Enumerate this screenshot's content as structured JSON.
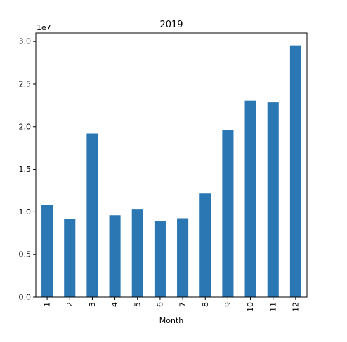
{
  "chart_data": {
    "type": "bar",
    "title": "2019",
    "xlabel": "Month",
    "ylabel": "",
    "y_offset_label": "1e7",
    "categories": [
      "1",
      "2",
      "3",
      "4",
      "5",
      "6",
      "7",
      "8",
      "9",
      "10",
      "11",
      "12"
    ],
    "values": [
      10850000,
      9200000,
      19200000,
      9600000,
      10350000,
      8900000,
      9250000,
      12150000,
      19600000,
      23050000,
      22850000,
      29550000
    ],
    "ylim": [
      0,
      31000000
    ],
    "yticks": [
      0,
      5000000,
      10000000,
      15000000,
      20000000,
      25000000,
      30000000
    ],
    "ytick_labels": [
      "0.0",
      "0.5",
      "1.0",
      "1.5",
      "2.0",
      "2.5",
      "3.0"
    ],
    "bar_color": "#2a77b4",
    "grid": false,
    "legend": "none"
  }
}
